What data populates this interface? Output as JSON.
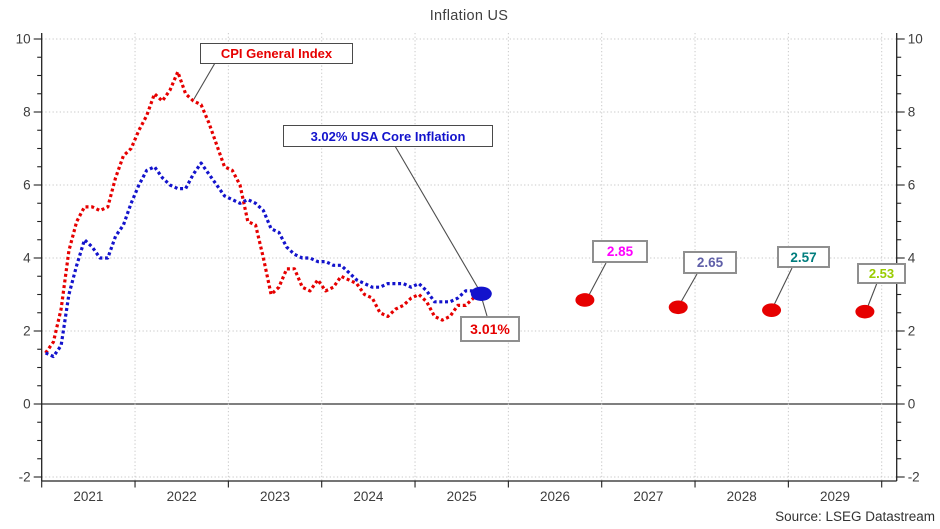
{
  "title": "Inflation US",
  "source": "Source: LSEG Datastream",
  "chart_data": {
    "type": "line",
    "title": "Inflation US",
    "x_axis": {
      "labels": [
        "2021",
        "2022",
        "2023",
        "2024",
        "2025",
        "2026",
        "2027",
        "2028",
        "2029"
      ],
      "range_years": [
        2021.0,
        2030.16
      ],
      "gridlines": "dotted vertical at year boundaries"
    },
    "y_axis": {
      "range": [
        -2,
        10
      ],
      "ticks": [
        -2,
        0,
        2,
        4,
        6,
        8,
        10
      ],
      "minor_tick_step": 0.5,
      "sides": "both",
      "zero_line": "solid",
      "gridlines": "dotted horizontal at major ticks"
    },
    "series": [
      {
        "name": "CPI General Index",
        "color": "#e60000",
        "line_style": "dotted",
        "start": "2021-01",
        "frequency": "monthly",
        "values": [
          1.4,
          1.7,
          2.6,
          4.2,
          5.0,
          5.4,
          5.4,
          5.3,
          5.4,
          6.2,
          6.8,
          7.0,
          7.5,
          7.9,
          8.5,
          8.3,
          8.6,
          9.1,
          8.5,
          8.3,
          8.2,
          7.7,
          7.1,
          6.5,
          6.4,
          6.0,
          5.0,
          4.9,
          4.0,
          3.0,
          3.2,
          3.7,
          3.7,
          3.2,
          3.1,
          3.4,
          3.1,
          3.2,
          3.5,
          3.4,
          3.3,
          3.0,
          2.9,
          2.5,
          2.4,
          2.6,
          2.7,
          2.9,
          3.0,
          2.8,
          2.4,
          2.3,
          2.4,
          2.7,
          2.7,
          2.9,
          3.01
        ]
      },
      {
        "name": "USA Core Inflation",
        "color": "#1313cc",
        "line_style": "dotted",
        "start": "2021-01",
        "frequency": "monthly",
        "values": [
          1.4,
          1.3,
          1.6,
          3.0,
          3.8,
          4.5,
          4.3,
          4.0,
          4.0,
          4.6,
          4.9,
          5.5,
          6.0,
          6.4,
          6.5,
          6.2,
          6.0,
          5.9,
          5.9,
          6.3,
          6.6,
          6.3,
          6.0,
          5.7,
          5.6,
          5.5,
          5.6,
          5.5,
          5.3,
          4.8,
          4.7,
          4.3,
          4.1,
          4.0,
          4.0,
          3.9,
          3.9,
          3.8,
          3.8,
          3.6,
          3.4,
          3.3,
          3.2,
          3.2,
          3.3,
          3.3,
          3.3,
          3.2,
          3.3,
          3.1,
          2.8,
          2.8,
          2.8,
          2.9,
          3.1,
          3.1,
          3.02
        ]
      }
    ],
    "endpoint_marker": {
      "x": 2025.71,
      "value": 3.02,
      "color": "#1313cc"
    },
    "forecast_marker_color": "#e60000",
    "forecast_points": [
      {
        "x": 2026.82,
        "value": 2.85
      },
      {
        "x": 2027.82,
        "value": 2.65
      },
      {
        "x": 2028.82,
        "value": 2.57
      },
      {
        "x": 2029.82,
        "value": 2.53
      }
    ],
    "annotations": {
      "cpi_label": {
        "text": "CPI General Index",
        "color": "#e60000"
      },
      "core_label": {
        "text": "3.02% USA Core Inflation",
        "color": "#1313cc"
      },
      "cpi_value_label": {
        "text": "3.01%",
        "color": "#e60000"
      },
      "forecasts": [
        {
          "text": "2.85",
          "color": "#ff00ff"
        },
        {
          "text": "2.65",
          "color": "#5f5fa8"
        },
        {
          "text": "2.57",
          "color": "#007d7d"
        },
        {
          "text": "2.53",
          "color": "#99cc00"
        }
      ]
    }
  }
}
